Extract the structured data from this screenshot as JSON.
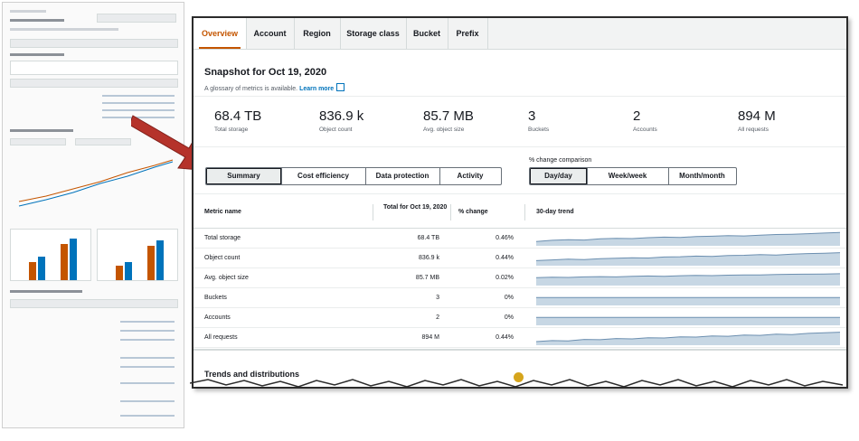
{
  "colors": {
    "accent_tab": "#c45500",
    "link": "#0073bb",
    "trend_fill": "#c7d7e4",
    "trend_line": "#6c8fb0",
    "arrow": "#b5332b"
  },
  "tabs": [
    "Overview",
    "Account",
    "Region",
    "Storage class",
    "Bucket",
    "Prefix"
  ],
  "active_tab": "Overview",
  "snapshot": {
    "title": "Snapshot for Oct 19, 2020",
    "glossary_text": "A glossary of metrics is available.",
    "learn_more": "Learn more",
    "external_icon": "external-link-icon"
  },
  "metrics": [
    {
      "value": "68.4 TB",
      "label": "Total storage"
    },
    {
      "value": "836.9 k",
      "label": "Object count"
    },
    {
      "value": "85.7 MB",
      "label": "Avg. object size"
    },
    {
      "value": "3",
      "label": "Buckets"
    },
    {
      "value": "2",
      "label": "Accounts"
    },
    {
      "value": "894 M",
      "label": "All requests"
    }
  ],
  "view_tabs": [
    "Summary",
    "Cost efficiency",
    "Data protection",
    "Activity"
  ],
  "view_selected": "Summary",
  "comparison": {
    "label": "% change comparison",
    "options": [
      "Day/day",
      "Week/week",
      "Month/month"
    ],
    "selected": "Day/day"
  },
  "table": {
    "headers": {
      "name": "Metric name",
      "total": "Total for Oct 19, 2020",
      "pct": "% change",
      "trend": "30-day trend"
    },
    "rows": [
      {
        "name": "Total storage",
        "total": "68.4 TB",
        "pct": "0.46%",
        "trend": [
          0.3,
          0.38,
          0.42,
          0.4,
          0.48,
          0.52,
          0.5,
          0.56,
          0.6,
          0.58,
          0.64,
          0.66,
          0.7,
          0.68,
          0.74,
          0.78,
          0.8,
          0.84,
          0.88,
          0.92
        ]
      },
      {
        "name": "Object count",
        "total": "836.9 k",
        "pct": "0.44%",
        "trend": [
          0.35,
          0.4,
          0.45,
          0.42,
          0.48,
          0.52,
          0.55,
          0.53,
          0.6,
          0.62,
          0.66,
          0.64,
          0.7,
          0.72,
          0.76,
          0.74,
          0.8,
          0.84,
          0.86,
          0.9
        ]
      },
      {
        "name": "Avg. object size",
        "total": "85.7 MB",
        "pct": "0.02%",
        "trend": [
          0.55,
          0.58,
          0.56,
          0.6,
          0.62,
          0.6,
          0.64,
          0.66,
          0.64,
          0.68,
          0.7,
          0.69,
          0.72,
          0.74,
          0.73,
          0.76,
          0.78,
          0.79,
          0.8,
          0.82
        ]
      },
      {
        "name": "Buckets",
        "total": "3",
        "pct": "0%",
        "trend": [
          0.55,
          0.55,
          0.55,
          0.55,
          0.55,
          0.55,
          0.55,
          0.55,
          0.55,
          0.55,
          0.55,
          0.55,
          0.55,
          0.55,
          0.55,
          0.55,
          0.55,
          0.55,
          0.55,
          0.55
        ]
      },
      {
        "name": "Accounts",
        "total": "2",
        "pct": "0%",
        "trend": [
          0.55,
          0.55,
          0.55,
          0.55,
          0.55,
          0.55,
          0.55,
          0.55,
          0.55,
          0.55,
          0.55,
          0.55,
          0.55,
          0.55,
          0.55,
          0.55,
          0.55,
          0.55,
          0.55,
          0.55
        ]
      },
      {
        "name": "All requests",
        "total": "894 M",
        "pct": "0.44%",
        "trend": [
          0.25,
          0.32,
          0.3,
          0.4,
          0.38,
          0.46,
          0.44,
          0.52,
          0.5,
          0.58,
          0.56,
          0.64,
          0.62,
          0.7,
          0.68,
          0.76,
          0.74,
          0.82,
          0.86,
          0.9
        ]
      }
    ]
  },
  "trends_heading": "Trends and distributions"
}
